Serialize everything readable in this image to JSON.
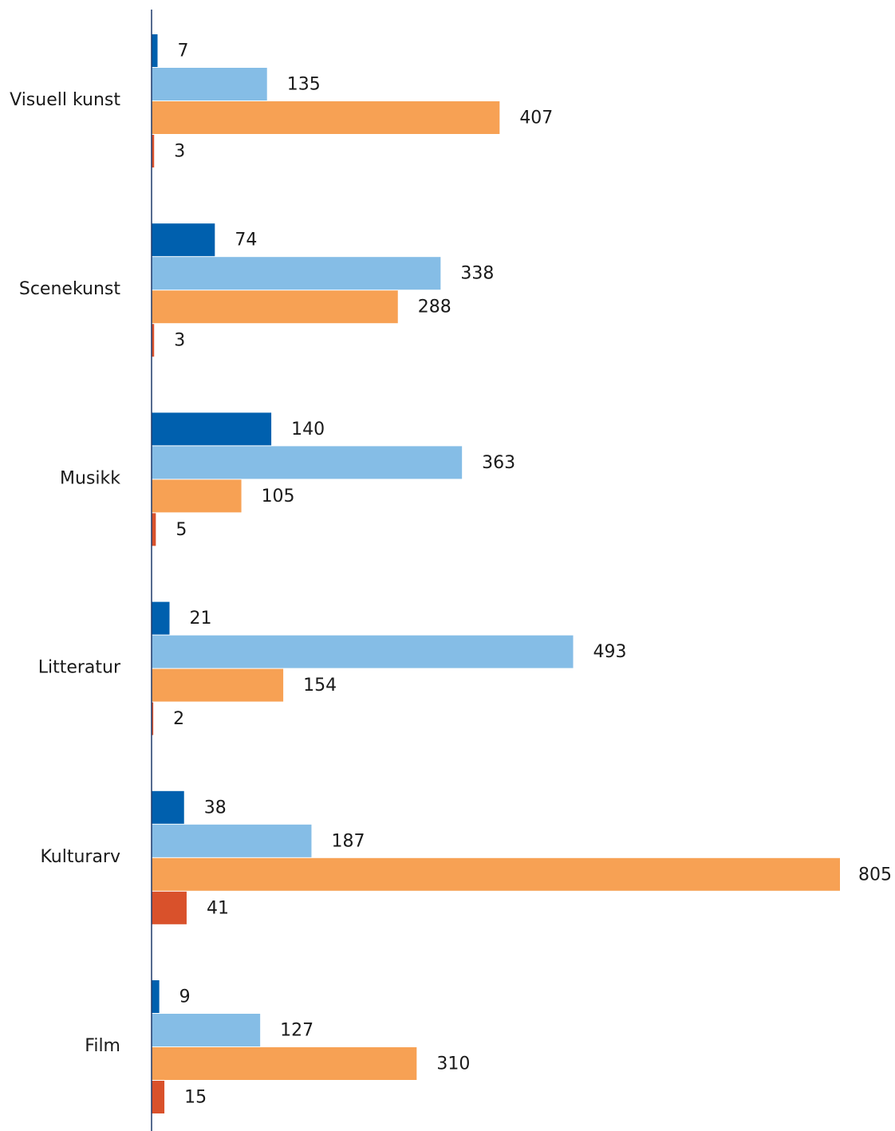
{
  "chart_data": {
    "type": "bar",
    "orientation": "horizontal",
    "categories": [
      "Visuell kunst",
      "Scenekunst",
      "Musikk",
      "Litteratur",
      "Kulturarv",
      "Film"
    ],
    "series": [
      {
        "values": [
          7,
          74,
          140,
          21,
          38,
          9
        ],
        "color": "#0060ae"
      },
      {
        "values": [
          135,
          338,
          363,
          493,
          187,
          127
        ],
        "color": "#85bde6"
      },
      {
        "values": [
          407,
          288,
          105,
          154,
          805,
          310
        ],
        "color": "#f7a154"
      },
      {
        "values": [
          3,
          3,
          5,
          2,
          41,
          15
        ],
        "color": "#d9512b"
      }
    ],
    "title": "",
    "xlabel": "",
    "ylabel": "",
    "xlim": [
      0,
      805
    ],
    "grid": false,
    "legend": "none",
    "data_labels": true,
    "axis_color": "#1f3a6b"
  }
}
